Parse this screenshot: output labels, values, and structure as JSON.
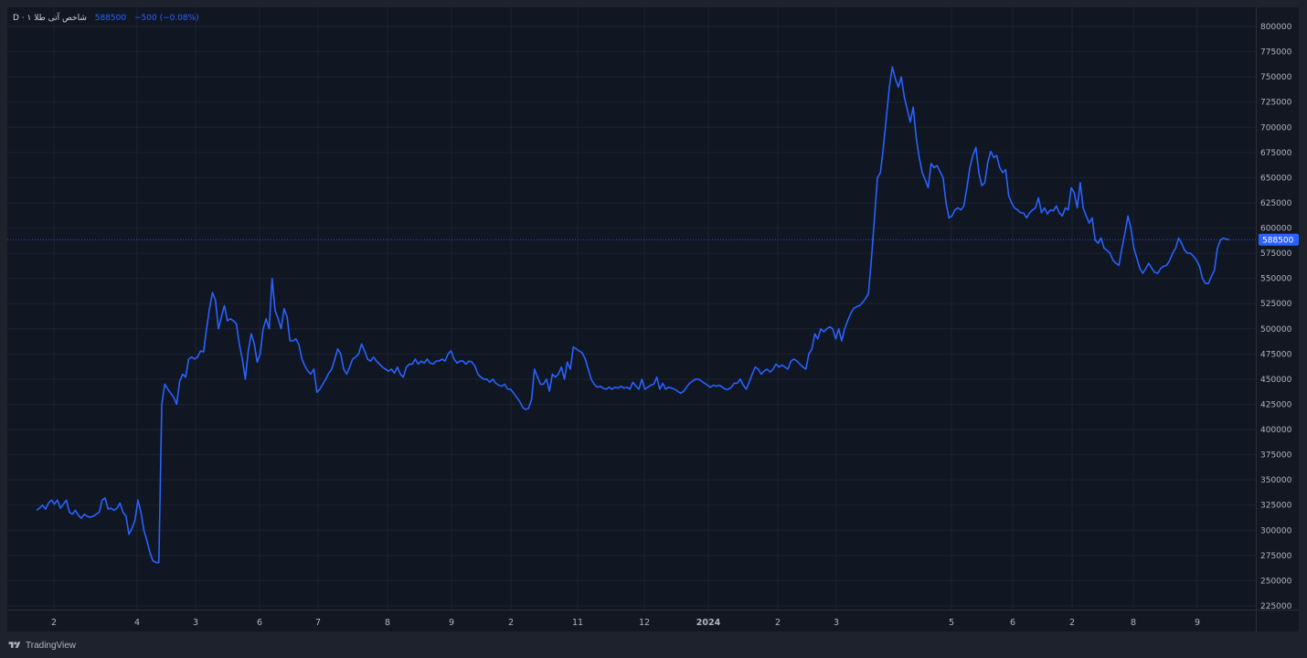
{
  "legend": {
    "symbol": "شاخص آتی طلا ۱ · D",
    "last": "588500",
    "change": "−500 (−0.08%)"
  },
  "footer": {
    "brand": "TradingView"
  },
  "colors": {
    "line": "#2962ff",
    "background": "#101622",
    "grid": "#1c2230",
    "text": "#b2b5be",
    "price_tag": "#2962ff"
  },
  "chart_data": {
    "type": "line",
    "ylim": [
      225000,
      800000
    ],
    "y_ticks": [
      225000,
      250000,
      275000,
      300000,
      325000,
      350000,
      375000,
      400000,
      425000,
      450000,
      475000,
      500000,
      525000,
      550000,
      575000,
      600000,
      625000,
      650000,
      675000,
      700000,
      725000,
      750000,
      775000,
      800000
    ],
    "x_ticks": [
      "2",
      "4",
      "3",
      "6",
      "7",
      "8",
      "9",
      "2",
      "11",
      "12",
      "2024",
      "2",
      "3",
      "5",
      "6",
      "2",
      "8",
      "9"
    ],
    "last_value": 588500,
    "grid": true,
    "series": [
      {
        "values": [
          320000,
          322000,
          325000,
          321000,
          327000,
          330000,
          326000,
          330000,
          322000,
          326000,
          330000,
          318000,
          316000,
          320000,
          315000,
          312000,
          316000,
          314000,
          313000,
          314000,
          316000,
          318000,
          330000,
          332000,
          321000,
          322000,
          320000,
          322000,
          327000,
          318000,
          314000,
          296000,
          302000,
          310000,
          330000,
          318000,
          300000,
          290000,
          278000,
          270000,
          268000,
          268000,
          425000,
          445000,
          440000,
          436000,
          432000,
          425000,
          448000,
          455000,
          452000,
          470000,
          472000,
          470000,
          472000,
          478000,
          477000,
          500000,
          520000,
          536000,
          528000,
          500000,
          512000,
          523000,
          508000,
          510000,
          508000,
          505000,
          485000,
          470000,
          450000,
          478000,
          495000,
          485000,
          467000,
          475000,
          500000,
          510000,
          500000,
          550000,
          518000,
          510000,
          500000,
          520000,
          512000,
          488000,
          488000,
          490000,
          484000,
          470000,
          463000,
          458000,
          455000,
          460000,
          437000,
          440000,
          445000,
          450000,
          456000,
          460000,
          470000,
          480000,
          475000,
          460000,
          455000,
          462000,
          470000,
          472000,
          475000,
          485000,
          478000,
          470000,
          468000,
          472000,
          468000,
          465000,
          462000,
          460000,
          458000,
          460000,
          456000,
          462000,
          455000,
          452000,
          462000,
          465000,
          465000,
          470000,
          465000,
          468000,
          466000,
          470000,
          466000,
          465000,
          468000,
          468000,
          470000,
          468000,
          475000,
          478000,
          470000,
          466000,
          468000,
          468000,
          465000,
          468000,
          467000,
          463000,
          455000,
          452000,
          450000,
          450000,
          447000,
          450000,
          446000,
          444000,
          443000,
          445000,
          440000,
          440000,
          436000,
          432000,
          428000,
          422000,
          420000,
          421000,
          430000,
          460000,
          452000,
          445000,
          445000,
          450000,
          438000,
          455000,
          452000,
          455000,
          462000,
          450000,
          467000,
          460000,
          482000,
          480000,
          478000,
          476000,
          470000,
          460000,
          450000,
          445000,
          442000,
          443000,
          441000,
          440000,
          442000,
          440000,
          442000,
          441000,
          443000,
          441000,
          442000,
          440000,
          447000,
          443000,
          440000,
          450000,
          440000,
          442000,
          444000,
          445000,
          452000,
          440000,
          446000,
          440000,
          442000,
          441000,
          440000,
          438000,
          436000,
          438000,
          442000,
          446000,
          448000,
          450000,
          450000,
          448000,
          446000,
          444000,
          442000,
          444000,
          443000,
          444000,
          442000,
          440000,
          440000,
          442000,
          446000,
          446000,
          450000,
          444000,
          440000,
          447000,
          455000,
          462000,
          460000,
          455000,
          458000,
          460000,
          457000,
          460000,
          465000,
          462000,
          464000,
          462000,
          460000,
          468000,
          470000,
          468000,
          465000,
          462000,
          460000,
          475000,
          480000,
          495000,
          490000,
          500000,
          497000,
          500000,
          502000,
          500000,
          490000,
          500000,
          488000,
          500000,
          508000,
          515000,
          520000,
          522000,
          523000,
          526000,
          530000,
          535000,
          570000,
          610000,
          650000,
          655000,
          680000,
          710000,
          740000,
          760000,
          748000,
          740000,
          750000,
          730000,
          718000,
          705000,
          720000,
          690000,
          670000,
          655000,
          648000,
          640000,
          664000,
          660000,
          662000,
          656000,
          650000,
          625000,
          610000,
          612000,
          618000,
          620000,
          618000,
          622000,
          640000,
          660000,
          672000,
          680000,
          655000,
          642000,
          645000,
          665000,
          676000,
          670000,
          672000,
          660000,
          655000,
          658000,
          632000,
          625000,
          620000,
          618000,
          615000,
          615000,
          610000,
          615000,
          618000,
          620000,
          630000,
          615000,
          620000,
          614000,
          618000,
          617000,
          622000,
          615000,
          612000,
          620000,
          618000,
          640000,
          635000,
          620000,
          645000,
          620000,
          612000,
          605000,
          610000,
          588000,
          585000,
          590000,
          580000,
          578000,
          575000,
          568000,
          565000,
          563000,
          580000,
          595000,
          612000,
          600000,
          580000,
          570000,
          560000,
          555000,
          560000,
          565000,
          560000,
          556000,
          555000,
          560000,
          562000,
          563000,
          568000,
          575000,
          580000,
          590000,
          585000,
          578000,
          575000,
          575000,
          572000,
          568000,
          562000,
          550000,
          545000,
          545000,
          552000,
          558000,
          580000,
          588000,
          590000,
          589000,
          588500
        ]
      }
    ]
  }
}
